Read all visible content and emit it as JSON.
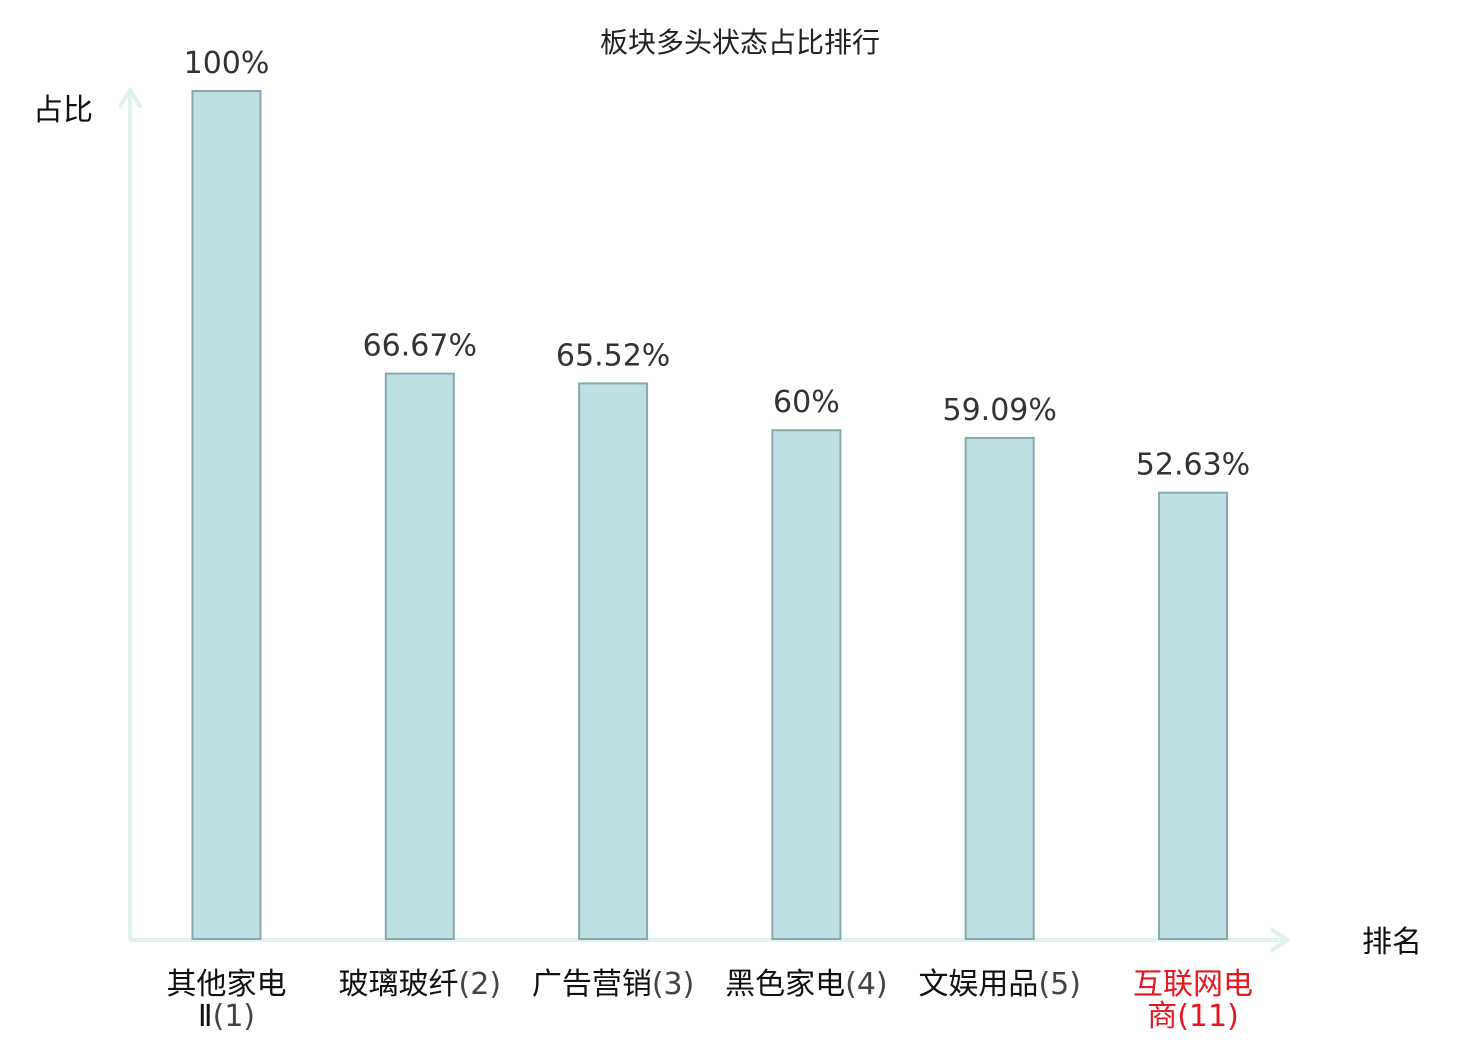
{
  "chart_data": {
    "type": "bar",
    "title": "板块多头状态占比排行",
    "ylabel": "占比",
    "xlabel": "排名",
    "ylim": [
      0,
      100
    ],
    "grid": false,
    "categories": [
      {
        "lines": [
          "其他家电",
          "Ⅱ(1)"
        ],
        "highlight": false
      },
      {
        "lines": [
          "玻璃玻纤(2)"
        ],
        "highlight": false
      },
      {
        "lines": [
          "广告营销(3)"
        ],
        "highlight": false
      },
      {
        "lines": [
          "黑色家电(4)"
        ],
        "highlight": false
      },
      {
        "lines": [
          "文娱用品(5)"
        ],
        "highlight": false
      },
      {
        "lines": [
          "互联网电",
          "商(11)"
        ],
        "highlight": true
      }
    ],
    "values": [
      100,
      66.67,
      65.52,
      60,
      59.09,
      52.63
    ],
    "value_labels": [
      "100%",
      "66.67%",
      "65.52%",
      "60%",
      "59.09%",
      "52.63%"
    ],
    "colors": {
      "bar_fill": "#bde0e3",
      "bar_stroke": "#86a9ad",
      "axis": "#e0f3f0",
      "highlight_text": "#e8171f"
    }
  }
}
